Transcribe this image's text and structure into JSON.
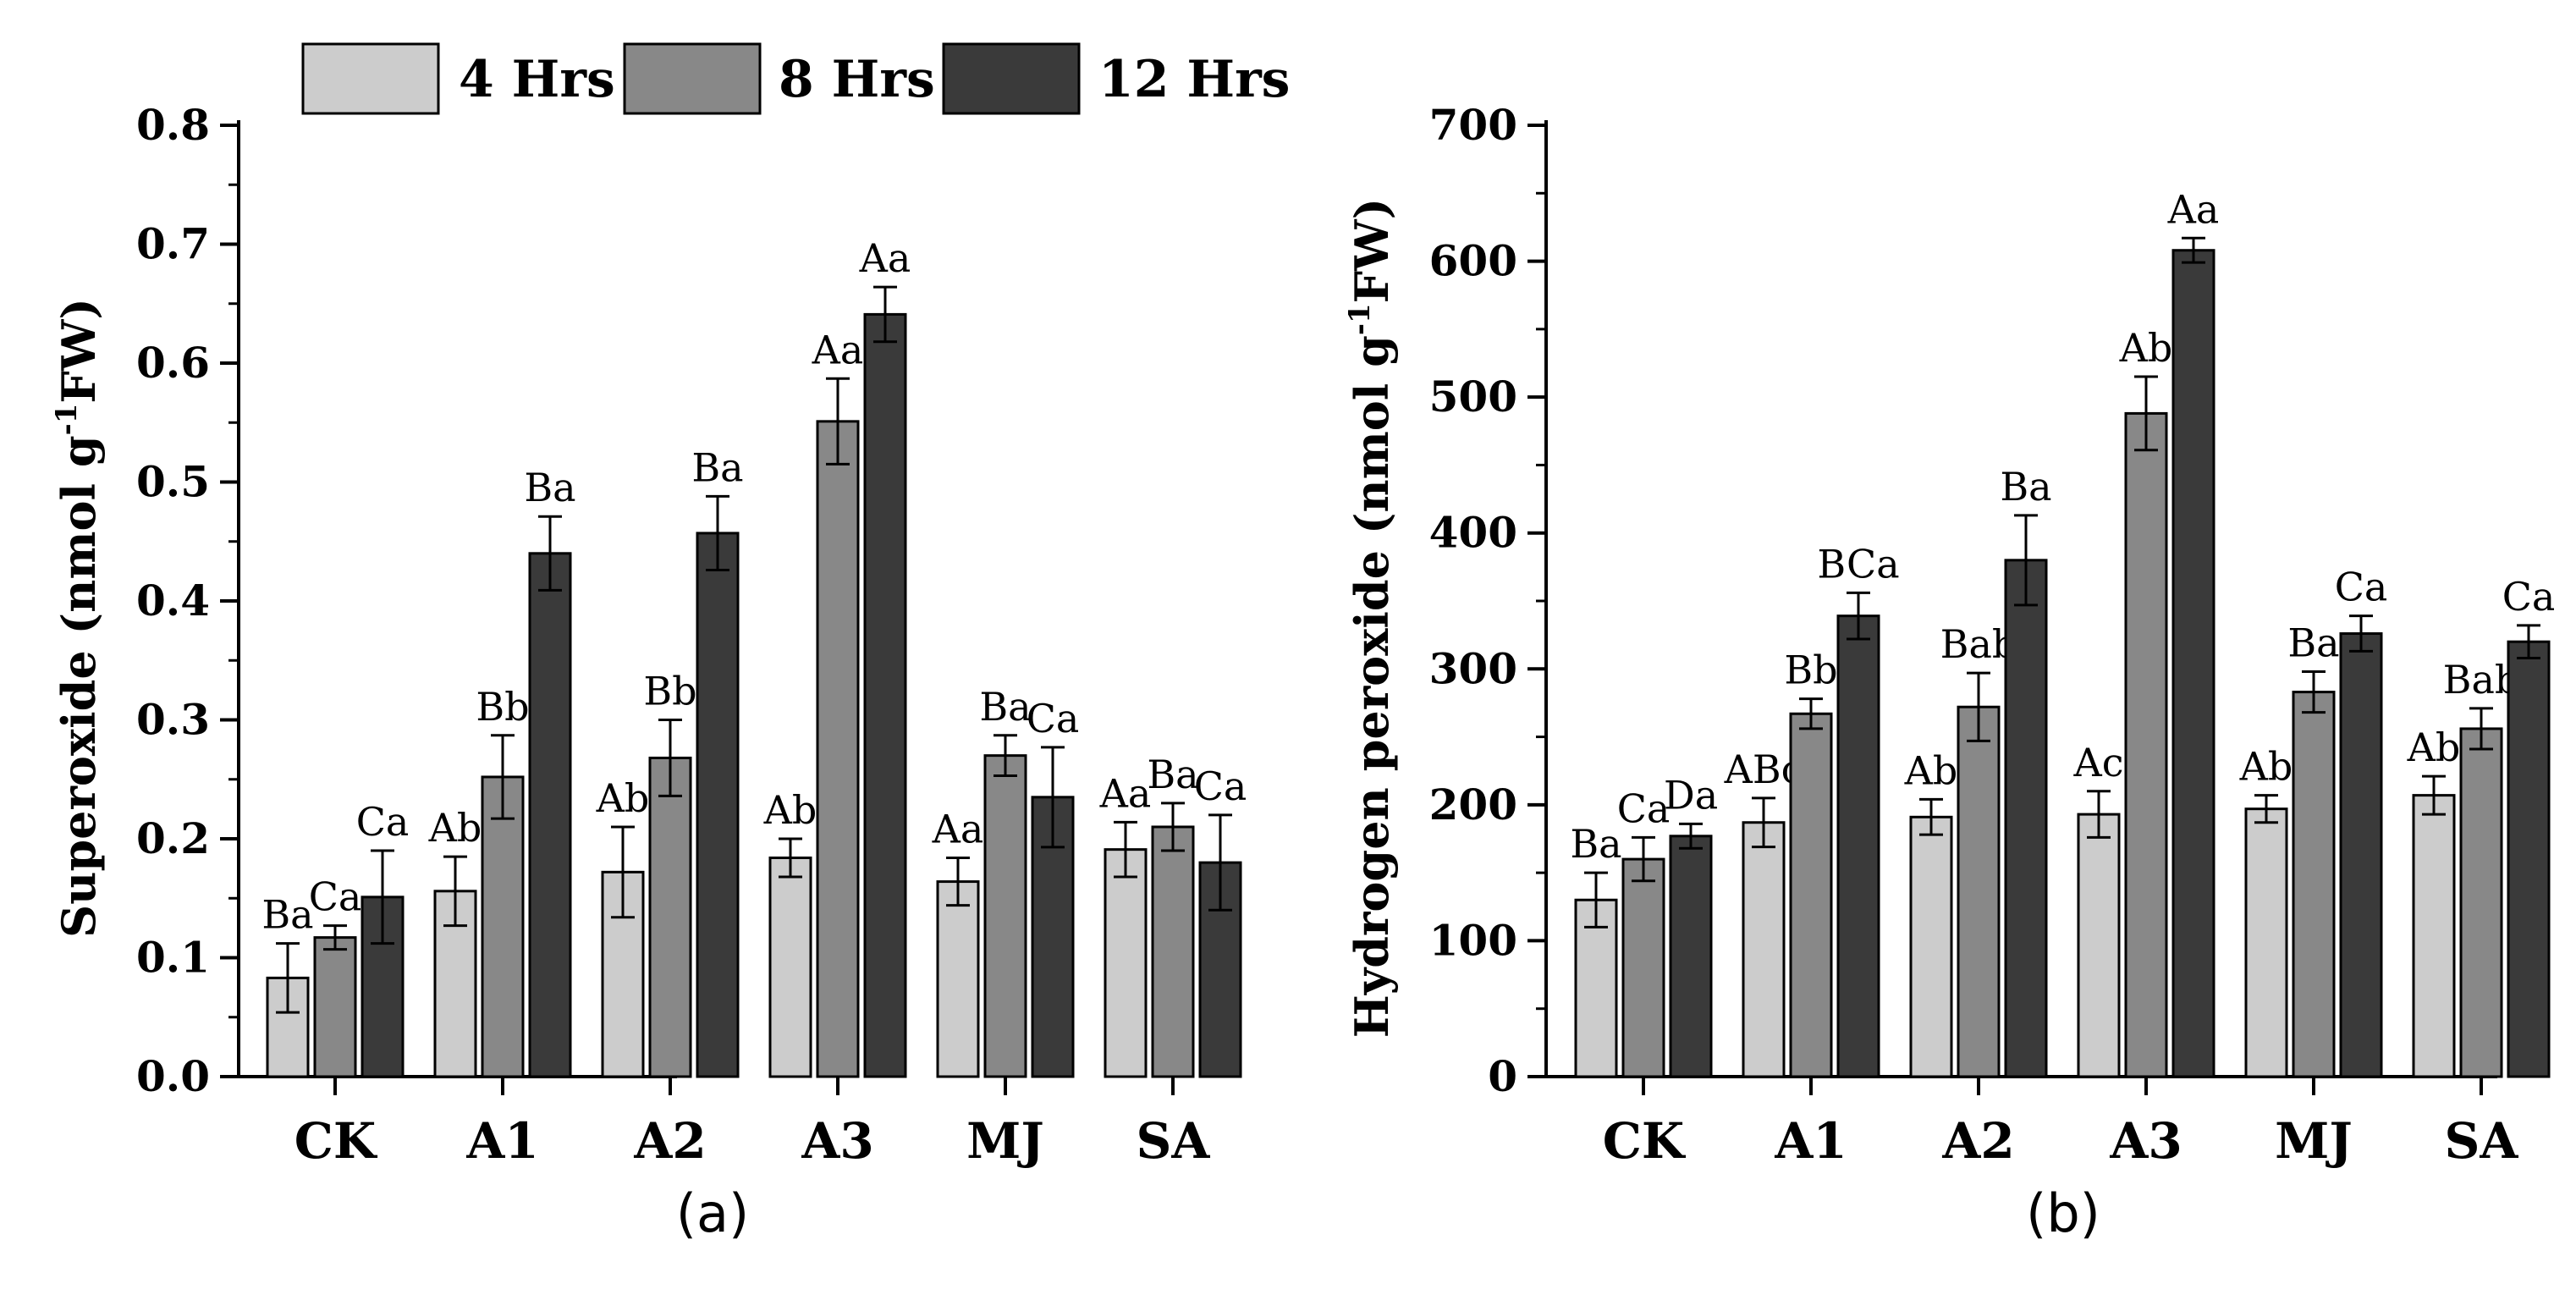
{
  "legend": [
    {
      "label": "4 Hrs",
      "color": "#cccccc"
    },
    {
      "label": "8 Hrs",
      "color": "#888888"
    },
    {
      "label": "12 Hrs",
      "color": "#3a3a3a"
    }
  ],
  "chart_data": [
    {
      "type": "bar",
      "panel_label": "(a)",
      "ylabel_main": "Superoxide (nmol g",
      "ylabel_sup": "-1",
      "ylabel_end": "FW)",
      "ylim": [
        0,
        0.8
      ],
      "yticks": [
        0.0,
        0.1,
        0.2,
        0.3,
        0.4,
        0.5,
        0.6,
        0.7,
        0.8
      ],
      "ytick_labels": [
        "0.0",
        "0.1",
        "0.2",
        "0.3",
        "0.4",
        "0.5",
        "0.6",
        "0.7",
        "0.8"
      ],
      "categories": [
        "CK",
        "A1",
        "A2",
        "A3",
        "MJ",
        "SA"
      ],
      "series": [
        {
          "name": "4 Hrs",
          "values": [
            0.083,
            0.156,
            0.172,
            0.184,
            0.164,
            0.191
          ],
          "errors": [
            0.029,
            0.029,
            0.038,
            0.016,
            0.02,
            0.023
          ],
          "labels": [
            "Ba",
            "Ab",
            "Ab",
            "Ab",
            "Aa",
            "Aa"
          ]
        },
        {
          "name": "8 Hrs",
          "values": [
            0.117,
            0.252,
            0.268,
            0.551,
            0.27,
            0.21
          ],
          "errors": [
            0.01,
            0.035,
            0.032,
            0.036,
            0.017,
            0.02
          ],
          "labels": [
            "Ca",
            "Bb",
            "Bb",
            "Aa",
            "Ba",
            "Ba"
          ]
        },
        {
          "name": "12 Hrs",
          "values": [
            0.151,
            0.44,
            0.457,
            0.641,
            0.235,
            0.18
          ],
          "errors": [
            0.039,
            0.031,
            0.031,
            0.023,
            0.042,
            0.04
          ],
          "labels": [
            "Ca",
            "Ba",
            "Ba",
            "Aa",
            "Ca",
            "Ca"
          ]
        }
      ]
    },
    {
      "type": "bar",
      "panel_label": "(b)",
      "ylabel_main": "Hydrogen peroxide (nmol g",
      "ylabel_sup": "-1",
      "ylabel_end": "FW)",
      "ylim": [
        0,
        700
      ],
      "yticks": [
        0,
        100,
        200,
        300,
        400,
        500,
        600,
        700
      ],
      "ytick_labels": [
        "0",
        "100",
        "200",
        "300",
        "400",
        "500",
        "600",
        "700"
      ],
      "categories": [
        "CK",
        "A1",
        "A2",
        "A3",
        "MJ",
        "SA"
      ],
      "series": [
        {
          "name": "4 Hrs",
          "values": [
            130,
            187,
            191,
            193,
            197,
            207
          ],
          "errors": [
            20,
            18,
            13,
            17,
            10,
            14
          ],
          "labels": [
            "Ba",
            "ABc",
            "Ab",
            "Ac",
            "Ab",
            "Ab"
          ]
        },
        {
          "name": "8 Hrs",
          "values": [
            160,
            267,
            272,
            488,
            283,
            256
          ],
          "errors": [
            16,
            11,
            25,
            27,
            15,
            15
          ],
          "labels": [
            "Ca",
            "Bb",
            "Bab",
            "Ab",
            "Ba",
            "Bab"
          ]
        },
        {
          "name": "12 Hrs",
          "values": [
            177,
            339,
            380,
            608,
            326,
            320
          ],
          "errors": [
            9,
            17,
            33,
            9,
            13,
            12
          ],
          "labels": [
            "Da",
            "BCa",
            "Ba",
            "Aa",
            "Ca",
            "Ca"
          ]
        }
      ]
    }
  ]
}
